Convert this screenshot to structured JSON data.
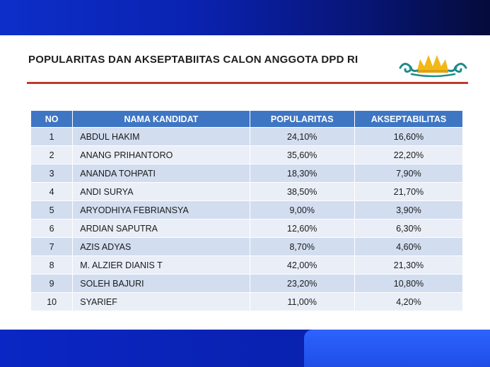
{
  "title": "POPULARITAS DAN AKSEPTABIITAS CALON ANGGOTA DPD RI",
  "colors": {
    "header_band": "#0a22b0",
    "accent_rule": "#c0392b",
    "table_header": "#3f76c4",
    "row_odd": "#d2ddef",
    "row_even": "#e9eef7",
    "logo_gold": "#f2b818",
    "logo_teal": "#1f8a8a"
  },
  "logo_icon": "siger-crown-icon",
  "table": {
    "headers": [
      "NO",
      "NAMA KANDIDAT",
      "POPULARITAS",
      "AKSEPTABILITAS"
    ],
    "rows": [
      {
        "no": "1",
        "name": "ABDUL HAKIM",
        "popularitas": "24,10%",
        "akseptabilitas": "16,60%"
      },
      {
        "no": "2",
        "name": "ANANG PRIHANTORO",
        "popularitas": "35,60%",
        "akseptabilitas": "22,20%"
      },
      {
        "no": "3",
        "name": "ANANDA TOHPATI",
        "popularitas": "18,30%",
        "akseptabilitas": "7,90%"
      },
      {
        "no": "4",
        "name": "ANDI SURYA",
        "popularitas": "38,50%",
        "akseptabilitas": "21,70%"
      },
      {
        "no": "5",
        "name": "ARYODHIYA FEBRIANSYA",
        "popularitas": "9,00%",
        "akseptabilitas": "3,90%"
      },
      {
        "no": "6",
        "name": "ARDIAN SAPUTRA",
        "popularitas": "12,60%",
        "akseptabilitas": "6,30%"
      },
      {
        "no": "7",
        "name": "AZIS ADYAS",
        "popularitas": "8,70%",
        "akseptabilitas": "4,60%"
      },
      {
        "no": "8",
        "name": "M. ALZIER DIANIS T",
        "popularitas": "42,00%",
        "akseptabilitas": "21,30%"
      },
      {
        "no": "9",
        "name": "SOLEH BAJURI",
        "popularitas": "23,20%",
        "akseptabilitas": "10,80%"
      },
      {
        "no": "10",
        "name": "SYARIEF",
        "popularitas": "11,00%",
        "akseptabilitas": "4,20%"
      }
    ]
  }
}
